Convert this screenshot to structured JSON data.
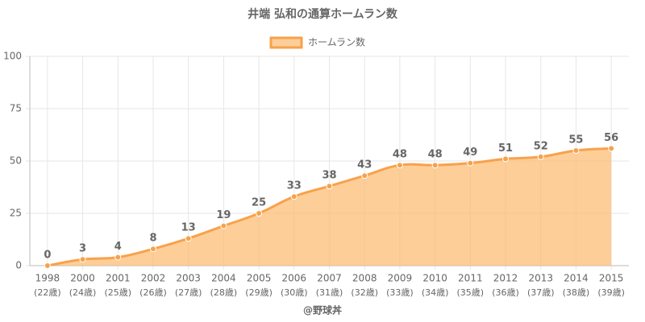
{
  "chart_data": {
    "type": "line",
    "title": "井端 弘和の通算ホームラン数",
    "categories": [
      "1998",
      "2000",
      "2001",
      "2002",
      "2003",
      "2004",
      "2005",
      "2006",
      "2007",
      "2008",
      "2009",
      "2010",
      "2011",
      "2012",
      "2013",
      "2014",
      "2015"
    ],
    "category_sublabels": [
      "(22歳)",
      "(24歳)",
      "(25歳)",
      "(26歳)",
      "(27歳)",
      "(28歳)",
      "(29歳)",
      "(30歳)",
      "(31歳)",
      "(32歳)",
      "(33歳)",
      "(34歳)",
      "(35歳)",
      "(36歳)",
      "(37歳)",
      "(38歳)",
      "(39歳)"
    ],
    "series": [
      {
        "name": "ホームラン数",
        "color": "#f7a24b",
        "fill": "rgba(253,185,110,0.7)",
        "values": [
          0,
          3,
          4,
          8,
          13,
          19,
          25,
          33,
          38,
          43,
          48,
          48,
          49,
          51,
          52,
          55,
          56
        ]
      }
    ],
    "ylim": [
      0,
      100
    ],
    "yticks": [
      0,
      25,
      50,
      75,
      100
    ],
    "grid": true,
    "legend": "top",
    "source": "@野球丼"
  }
}
